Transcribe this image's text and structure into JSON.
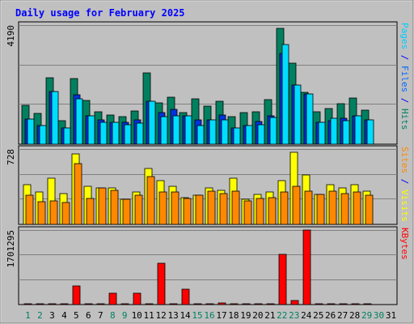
{
  "chart_data": {
    "type": "bar",
    "title": "Daily usage for February 2025",
    "days": [
      "1",
      "2",
      "3",
      "4",
      "5",
      "6",
      "7",
      "8",
      "9",
      "10",
      "11",
      "12",
      "13",
      "14",
      "15",
      "16",
      "17",
      "18",
      "19",
      "20",
      "21",
      "22",
      "23",
      "24",
      "25",
      "26",
      "27",
      "28",
      "29",
      "30",
      "31"
    ],
    "weekend_days": [
      "1",
      "2",
      "8",
      "9",
      "15",
      "16",
      "22",
      "23",
      "29",
      "30"
    ],
    "panels": [
      {
        "name": "hits-files-pages",
        "max_label": "4190",
        "ymax": 4190,
        "axis_labels": [
          {
            "text": "Pages",
            "color": "#00ccff"
          },
          {
            "text": " / ",
            "color": "#0000ff"
          },
          {
            "text": "Files",
            "color": "#0066ff"
          },
          {
            "text": " / ",
            "color": "#0000ff"
          },
          {
            "text": "Hits",
            "color": "#00805f"
          }
        ],
        "series": [
          {
            "name": "Hits",
            "color": "#00805f",
            "values": [
              1370,
              1090,
              2340,
              840,
              2300,
              1550,
              1150,
              1040,
              980,
              1160,
              2520,
              1460,
              1650,
              1110,
              1590,
              1330,
              1510,
              960,
              1110,
              1140,
              1560,
              4090,
              2850,
              1830,
              1130,
              1260,
              1420,
              1620,
              1210,
              0,
              0
            ]
          },
          {
            "name": "Files",
            "color": "#0033dd",
            "values": [
              880,
              660,
              1850,
              570,
              1750,
              1010,
              850,
              760,
              760,
              860,
              1520,
              1100,
              1220,
              1010,
              850,
              850,
              1040,
              570,
              660,
              790,
              990,
              3190,
              2090,
              1780,
              770,
              820,
              910,
              990,
              860,
              0,
              0
            ]
          },
          {
            "name": "Pages",
            "color": "#00ddff",
            "values": [
              880,
              660,
              1850,
              570,
              1610,
              1010,
              760,
              760,
              670,
              750,
              1500,
              980,
              990,
              1010,
              660,
              850,
              860,
              570,
              660,
              690,
              950,
              3500,
              2090,
              1780,
              770,
              920,
              830,
              990,
              860,
              0,
              0
            ]
          }
        ]
      },
      {
        "name": "visits-sites",
        "max_label": "728",
        "ymax": 728,
        "axis_labels": [
          {
            "text": "Sites",
            "color": "#ff8800"
          },
          {
            "text": " / ",
            "color": "#0000ff"
          },
          {
            "text": "Visits",
            "color": "#ffff00"
          }
        ],
        "series": [
          {
            "name": "Visits",
            "color": "#ffff00",
            "values": [
              380,
              310,
              450,
              300,
              680,
              370,
              350,
              350,
              240,
              310,
              540,
              420,
              370,
              260,
              280,
              350,
              330,
              450,
              240,
              290,
              310,
              420,
              700,
              480,
              290,
              380,
              350,
              380,
              320,
              0,
              0
            ]
          },
          {
            "name": "Sites",
            "color": "#ff8800",
            "values": [
              280,
              220,
              230,
              210,
              590,
              250,
              350,
              330,
              240,
              280,
              460,
              310,
              310,
              250,
              280,
              320,
              300,
              320,
              230,
              250,
              260,
              310,
              370,
              320,
              290,
              320,
              300,
              310,
              280,
              0,
              0
            ]
          }
        ]
      },
      {
        "name": "kbytes",
        "max_label": "1701295",
        "ymax": 1701295,
        "axis_labels": [
          {
            "text": "KBytes",
            "color": "#ff0000"
          }
        ],
        "series": [
          {
            "name": "KBytes",
            "color": "#ff0000",
            "values": [
              26000,
              26000,
              26000,
              26000,
              420000,
              26000,
              26000,
              260000,
              26000,
              260000,
              26000,
              950000,
              26000,
              350000,
              26000,
              26000,
              40000,
              26000,
              26000,
              26000,
              26000,
              1140000,
              90000,
              1701295,
              26000,
              26000,
              26000,
              26000,
              26000,
              0,
              0
            ]
          }
        ]
      }
    ]
  }
}
